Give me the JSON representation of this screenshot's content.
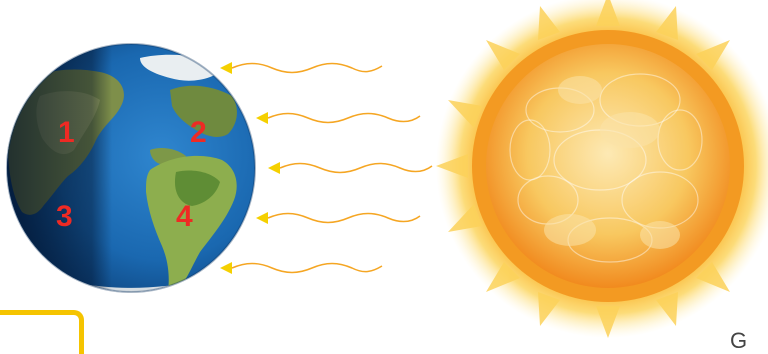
{
  "markers": [
    {
      "id": "1",
      "label": "1"
    },
    {
      "id": "2",
      "label": "2"
    },
    {
      "id": "3",
      "label": "3"
    },
    {
      "id": "4",
      "label": "4"
    }
  ],
  "corner_text": "G",
  "colors": {
    "ocean": "#1a68b0",
    "land": "#8a9a4e",
    "marker": "#ee2a24",
    "ray": "#f5a623",
    "sun_core": "#f8c860",
    "sun_edge": "#f18a1e",
    "frame": "#f5c400"
  },
  "icons": [
    "earth-globe",
    "sun",
    "sunlight-ray"
  ]
}
